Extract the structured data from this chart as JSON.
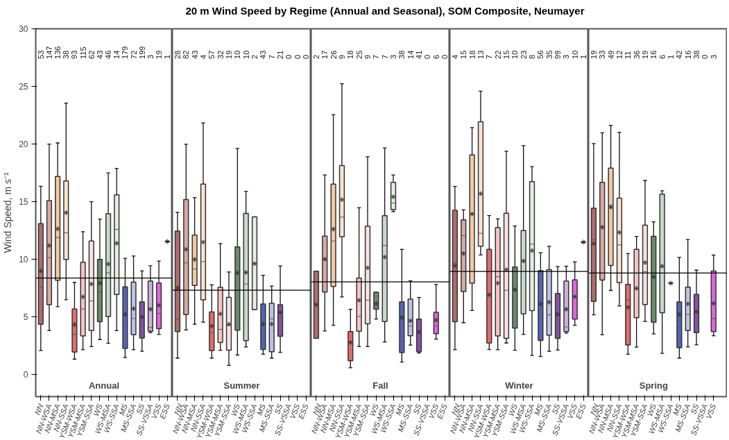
{
  "chart_data": [
    {
      "type": "box",
      "ylabel": "Wind Speed, m s⁻¹",
      "categories": [
        "NN",
        "NN-WSA",
        "NN-MSA",
        "NN-SSA",
        "YSM-WSA",
        "YSM-MSA",
        "YSM-SSA",
        "WS",
        "WS-MSA",
        "WS-SSA",
        "MS",
        "MS-SSA",
        "SS",
        "SS-VSSA",
        "VSS",
        "ESS"
      ],
      "colors": [
        "#b06c6c",
        "#d8aaa2",
        "#f2c9a4",
        "#fbe3d0",
        "#e26b6b",
        "#f6c3c3",
        "#fbe1e1",
        "#6b8b6b",
        "#c9d9c9",
        "#e2eee1",
        "#5563b5",
        "#bcc3e3",
        "#8552a5",
        "#cbb3db",
        "#e066e0",
        "#222222"
      ],
      "ylim": [
        -1.9,
        30
      ],
      "yticks": [
        0,
        5,
        10,
        15,
        20,
        25,
        30
      ],
      "boxes": [
        {
          "low": 2.1,
          "q1": 4.38,
          "median": 7.6,
          "q3": 13.1,
          "high": 16.35,
          "mean": 9.0
        },
        {
          "low": 3.83,
          "q1": 6.07,
          "median": 10.15,
          "q3": 15.1,
          "high": 20.0,
          "mean": 11.2
        },
        {
          "low": 5.9,
          "q1": 8.2,
          "median": 11.9,
          "q3": 17.2,
          "high": 20.1,
          "mean": 12.65
        },
        {
          "low": 6.5,
          "q1": 10.0,
          "median": 12.3,
          "q3": 16.8,
          "high": 23.55,
          "mean": 14.05
        },
        {
          "low": 1.35,
          "q1": 1.96,
          "median": 3.5,
          "q3": 5.7,
          "high": 8.0,
          "mean": 4.35
        },
        {
          "low": 2.17,
          "q1": 3.36,
          "median": 5.7,
          "q3": 9.75,
          "high": 12.4,
          "mean": 6.75
        },
        {
          "low": 2.44,
          "q1": 3.83,
          "median": 6.4,
          "q3": 11.6,
          "high": 15.0,
          "mean": 7.87
        },
        {
          "low": 3.05,
          "q1": 4.6,
          "median": 7.17,
          "q3": 10.0,
          "high": 13.5,
          "mean": 7.94
        },
        {
          "low": 2.73,
          "q1": 5.05,
          "median": 8.84,
          "q3": 13.96,
          "high": 17.5,
          "mean": 9.6
        },
        {
          "low": 3.83,
          "q1": 6.97,
          "median": 12.6,
          "q3": 15.6,
          "high": 17.9,
          "mean": 11.4
        },
        {
          "low": 1.49,
          "q1": 2.28,
          "median": 4.33,
          "q3": 7.62,
          "high": 10.1,
          "mean": 5.23
        },
        {
          "low": 2.17,
          "q1": 3.47,
          "median": 4.87,
          "q3": 8.03,
          "high": 10.3,
          "mean": 5.73
        },
        {
          "low": 2.03,
          "q1": 3.18,
          "median": 4.33,
          "q3": 6.32,
          "high": 9.0,
          "mean": 5.0
        },
        {
          "low": 3.65,
          "q1": 3.77,
          "median": 4.1,
          "q3": 8.12,
          "high": 9.45,
          "mean": 5.68
        },
        {
          "low": 3.5,
          "q1": 4.0,
          "median": 5.3,
          "q3": 7.96,
          "high": 9.86,
          "mean": 6.02
        },
        {
          "low": 11.55,
          "q1": 11.55,
          "median": 11.55,
          "q3": 11.55,
          "high": 11.55,
          "mean": 11.55
        }
      ],
      "ref_lines": [
        {
          "axis": "y",
          "value": 8.39
        }
      ],
      "annotations": [
        "Annual",
        "53",
        "147",
        "136",
        "38",
        "93",
        "115",
        "62",
        "43",
        "46",
        "14",
        "179",
        "72",
        "199",
        "3",
        "19",
        "1"
      ]
    },
    {
      "type": "box",
      "categories": [
        "NN",
        "NN-WSA",
        "NN-MSA",
        "NN-SSA",
        "YSM-WSA",
        "YSM-MSA",
        "YSM-SSA",
        "WS",
        "WS-MSA",
        "WS-SSA",
        "MS",
        "MS-SSA",
        "SS",
        "SS-VSSA",
        "VSS",
        "ESS"
      ],
      "colors": [
        "#b06c6c",
        "#d8aaa2",
        "#f2c9a4",
        "#fbe3d0",
        "#e26b6b",
        "#f6c3c3",
        "#fbe1e1",
        "#6b8b6b",
        "#c9d9c9",
        "#e2eee1",
        "#5563b5",
        "#bcc3e3",
        "#8552a5",
        "#cbb3db",
        "#e066e0",
        "#222222"
      ],
      "ylim": [
        -1.9,
        30
      ],
      "yticks": [
        0,
        5,
        10,
        15,
        20,
        25,
        30
      ],
      "tick_labels": "x",
      "boxes": [
        {
          "low": 1.44,
          "q1": 3.74,
          "median": 4.83,
          "q3": 12.45,
          "high": 14.08,
          "mean": 7.53
        },
        {
          "low": 3.88,
          "q1": 5.21,
          "median": 9.7,
          "q3": 15.2,
          "high": 19.99,
          "mean": 10.87
        },
        {
          "low": 4.38,
          "q1": 7.74,
          "median": 9.16,
          "q3": 12.11,
          "high": 15.36,
          "mean": 10.0
        },
        {
          "low": 4.56,
          "q1": 6.5,
          "median": 9.81,
          "q3": 16.53,
          "high": 21.84,
          "mean": 11.5
        },
        {
          "low": 1.44,
          "q1": 2.08,
          "median": 3.65,
          "q3": 5.44,
          "high": 7.8,
          "mean": 4.22
        },
        {
          "low": 2.12,
          "q1": 2.8,
          "median": 3.93,
          "q3": 7.58,
          "high": 11.37,
          "mean": 5.28
        },
        {
          "low": 0.81,
          "q1": 2.14,
          "median": 4.3,
          "q3": 6.7,
          "high": 8.91,
          "mean": 4.38
        },
        {
          "low": 1.71,
          "q1": 3.86,
          "median": 8.7,
          "q3": 11.08,
          "high": 19.63,
          "mean": 8.85
        },
        {
          "low": 2.41,
          "q1": 2.96,
          "median": 7.87,
          "q3": 13.99,
          "high": 15.9,
          "mean": 8.87
        },
        {
          "low": 5.66,
          "q1": 5.66,
          "median": 9.63,
          "q3": 13.69,
          "high": 13.69,
          "mean": 9.63
        },
        {
          "low": 1.78,
          "q1": 2.19,
          "median": 3.23,
          "q3": 6.14,
          "high": 8.62,
          "mean": 4.38
        },
        {
          "low": 1.44,
          "q1": 2.0,
          "median": 4.85,
          "q3": 6.2,
          "high": 7.69,
          "mean": 4.4
        },
        {
          "low": 1.94,
          "q1": 3.34,
          "median": 5.0,
          "q3": 6.07,
          "high": 9.43,
          "mean": 5.39
        },
        null,
        null,
        null
      ],
      "ref_lines": [
        {
          "axis": "y",
          "value": 7.33
        }
      ],
      "annotations": [
        "Summer",
        "28",
        "82",
        "43",
        "4",
        "57",
        "32",
        "19",
        "10",
        "10",
        "2",
        "43",
        "7",
        "21",
        "0",
        "0",
        "0"
      ]
    },
    {
      "type": "box",
      "categories": [
        "NN",
        "NN-WSA",
        "NN-MSA",
        "NN-SSA",
        "YSM-WSA",
        "YSM-MSA",
        "YSM-SSA",
        "WS",
        "WS-MSA",
        "WS-SSA",
        "MS",
        "MS-SSA",
        "SS",
        "SS-VSSA",
        "VSS",
        "ESS"
      ],
      "colors": [
        "#b06c6c",
        "#d8aaa2",
        "#f2c9a4",
        "#fbe3d0",
        "#e26b6b",
        "#f6c3c3",
        "#fbe1e1",
        "#6b8b6b",
        "#c9d9c9",
        "#e2eee1",
        "#5563b5",
        "#bcc3e3",
        "#8552a5",
        "#cbb3db",
        "#e066e0",
        "#222222"
      ],
      "ylim": [
        -1.9,
        30
      ],
      "yticks": [
        0,
        5,
        10,
        15,
        20,
        25,
        30
      ],
      "tick_labels": "x",
      "boxes": [
        {
          "low": 3.16,
          "q1": 3.16,
          "median": 6.07,
          "q3": 8.98,
          "high": 8.98,
          "mean": 6.07
        },
        {
          "low": 3.79,
          "q1": 7.17,
          "median": 10.0,
          "q3": 12.02,
          "high": 17.32,
          "mean": 10.02
        },
        {
          "low": 4.29,
          "q1": 7.65,
          "median": 11.6,
          "q3": 16.53,
          "high": 22.54,
          "mean": 12.63
        },
        {
          "low": 6.74,
          "q1": 11.98,
          "median": 13.67,
          "q3": 18.14,
          "high": 25.24,
          "mean": 15.18
        },
        {
          "low": 0.61,
          "q1": 1.22,
          "median": 2.8,
          "q3": 3.74,
          "high": 5.68,
          "mean": 2.8
        },
        {
          "low": 2.44,
          "q1": 3.77,
          "median": 5.05,
          "q3": 8.37,
          "high": 14.48,
          "mean": 6.45
        },
        {
          "low": 2.44,
          "q1": 4.42,
          "median": 6.47,
          "q3": 12.88,
          "high": 18.9,
          "mean": 9.27
        },
        {
          "low": 4.83,
          "q1": 5.68,
          "median": 6.02,
          "q3": 7.15,
          "high": 7.15,
          "mean": 6.18
        },
        {
          "low": 2.84,
          "q1": 4.62,
          "median": 11.21,
          "q3": 13.8,
          "high": 19.67,
          "mean": 10.2
        },
        {
          "low": 14.14,
          "q1": 14.32,
          "median": 14.89,
          "q3": 16.69,
          "high": 17.32,
          "mean": 15.43
        },
        {
          "low": 1.1,
          "q1": 1.92,
          "median": 3.32,
          "q3": 6.32,
          "high": 10.87,
          "mean": 4.96
        },
        {
          "low": 2.57,
          "q1": 3.38,
          "median": 4.22,
          "q3": 6.56,
          "high": 8.14,
          "mean": 4.67
        },
        {
          "low": 1.89,
          "q1": 2.0,
          "median": 3.6,
          "q3": 4.83,
          "high": 6.7,
          "mean": 3.72
        },
        null,
        {
          "low": 3.09,
          "q1": 3.56,
          "median": 4.22,
          "q3": 5.41,
          "high": 7.83,
          "mean": 4.74
        },
        null
      ],
      "ref_lines": [
        {
          "axis": "y",
          "value": 8.05
        }
      ],
      "title": "20 m Wind Speed by Regime (Annual and Seasonal), SOM Composite, Neumayer",
      "annotations": [
        "Fall",
        "2",
        "17",
        "26",
        "9",
        "18",
        "25",
        "9",
        "7",
        "7",
        "3",
        "38",
        "14",
        "41",
        "0",
        "6",
        "0"
      ]
    },
    {
      "type": "box",
      "categories": [
        "NN",
        "NN-WSA",
        "NN-MSA",
        "NN-SSA",
        "YSM-WSA",
        "YSM-MSA",
        "YSM-SSA",
        "WS",
        "WS-MSA",
        "WS-SSA",
        "MS",
        "MS-SSA",
        "SS",
        "SS-VSSA",
        "VSS",
        "ESS"
      ],
      "colors": [
        "#b06c6c",
        "#d8aaa2",
        "#f2c9a4",
        "#fbe3d0",
        "#e26b6b",
        "#f6c3c3",
        "#fbe1e1",
        "#6b8b6b",
        "#c9d9c9",
        "#e2eee1",
        "#5563b5",
        "#bcc3e3",
        "#8552a5",
        "#cbb3db",
        "#e066e0",
        "#222222"
      ],
      "ylim": [
        -1.9,
        30
      ],
      "yticks": [
        0,
        5,
        10,
        15,
        20,
        25,
        30
      ],
      "tick_labels": "x",
      "boxes": [
        {
          "low": 2.17,
          "q1": 4.6,
          "median": 9.7,
          "q3": 14.26,
          "high": 16.33,
          "mean": 9.45
        },
        {
          "low": 4.51,
          "q1": 7.22,
          "median": 12.07,
          "q3": 13.44,
          "high": 14.3,
          "mean": 10.51
        },
        {
          "low": 5.57,
          "q1": 7.94,
          "median": 13.94,
          "q3": 19.06,
          "high": 21.43,
          "mean": 13.94
        },
        {
          "low": 10.38,
          "q1": 11.14,
          "median": 12.27,
          "q3": 21.93,
          "high": 24.59,
          "mean": 15.7
        },
        {
          "low": 2.19,
          "q1": 2.75,
          "median": 6.93,
          "q3": 10.87,
          "high": 13.8,
          "mean": 6.93
        },
        {
          "low": 2.17,
          "q1": 3.36,
          "median": 8.5,
          "q3": 12.75,
          "high": 13.51,
          "mean": 7.94
        },
        {
          "low": 2.75,
          "q1": 3.16,
          "median": 7.33,
          "q3": 14.0,
          "high": 19.38,
          "mean": 9.11
        },
        {
          "low": 2.12,
          "q1": 4.04,
          "median": 7.38,
          "q3": 9.34,
          "high": 12.9,
          "mean": 7.38
        },
        {
          "low": 3.5,
          "q1": 5.28,
          "median": 9.86,
          "q3": 12.5,
          "high": 19.87,
          "mean": 9.86
        },
        {
          "low": 1.67,
          "q1": 5.57,
          "median": 11.32,
          "q3": 16.74,
          "high": 18.05,
          "mean": 10.76
        },
        {
          "low": 1.58,
          "q1": 2.98,
          "median": 6.14,
          "q3": 9.02,
          "high": 10.58,
          "mean": 6.14
        },
        {
          "low": 2.03,
          "q1": 3.43,
          "median": 5.19,
          "q3": 9.11,
          "high": 11.14,
          "mean": 6.29
        },
        {
          "low": 2.14,
          "q1": 3.16,
          "median": 4.42,
          "q3": 7.04,
          "high": 9.38,
          "mean": 5.23
        },
        {
          "low": 3.61,
          "q1": 3.74,
          "median": 4.15,
          "q3": 8.12,
          "high": 9.41,
          "mean": 5.68
        },
        {
          "low": 4.29,
          "q1": 4.83,
          "median": 6.77,
          "q3": 8.23,
          "high": 9.79,
          "mean": 6.77
        },
        {
          "low": 11.5,
          "q1": 11.5,
          "median": 11.5,
          "q3": 11.5,
          "high": 11.5,
          "mean": 11.5
        }
      ],
      "ref_lines": [
        {
          "axis": "y",
          "value": 8.96
        }
      ],
      "annotations": [
        "Winter",
        "4",
        "15",
        "18",
        "13",
        "7",
        "22",
        "15",
        "10",
        "23",
        "8",
        "56",
        "35",
        "99",
        "3",
        "10",
        "1"
      ]
    },
    {
      "type": "box",
      "categories": [
        "NN",
        "NN-WSA",
        "NN-MSA",
        "NN-SSA",
        "YSM-WSA",
        "YSM-MSA",
        "YSM-SSA",
        "WS",
        "WS-MSA",
        "WS-SSA",
        "MS",
        "MS-SSA",
        "SS",
        "SS-VSSA",
        "VSS"
      ],
      "colors": [
        "#b06c6c",
        "#d8aaa2",
        "#f2c9a4",
        "#fbe3d0",
        "#e26b6b",
        "#f6c3c3",
        "#fbe1e1",
        "#6b8b6b",
        "#c9d9c9",
        "#333333",
        "#5563b5",
        "#bcc3e3",
        "#8552a5",
        "#cbb3db",
        "#e066e0"
      ],
      "ylim": [
        -1.9,
        30
      ],
      "yticks": [
        0,
        5,
        10,
        15,
        20,
        25,
        30
      ],
      "tick_labels": "x",
      "boxes": [
        {
          "low": 5.19,
          "q1": 6.36,
          "median": 11.7,
          "q3": 14.44,
          "high": 20.05,
          "mean": 11.37
        },
        {
          "low": 3.47,
          "q1": 8.21,
          "median": 12.79,
          "q3": 16.69,
          "high": 20.98,
          "mean": 12.79
        },
        {
          "low": 7.31,
          "q1": 9.47,
          "median": 14.71,
          "q3": 17.91,
          "high": 21.63,
          "mean": 14.53
        },
        {
          "low": 5.96,
          "q1": 7.99,
          "median": 11.26,
          "q3": 15.32,
          "high": 21.02,
          "mean": 12.34
        },
        {
          "low": 1.78,
          "q1": 2.59,
          "median": 6.47,
          "q3": 7.83,
          "high": 10.51,
          "mean": 5.84
        },
        {
          "low": 2.39,
          "q1": 4.94,
          "median": 7.49,
          "q3": 10.87,
          "high": 12.0,
          "mean": 7.49
        },
        {
          "low": 4.62,
          "q1": 6.09,
          "median": 8.93,
          "q3": 12.97,
          "high": 16.85,
          "mean": 9.72
        },
        {
          "low": 3.54,
          "q1": 4.56,
          "median": 8.48,
          "q3": 12.0,
          "high": 13.26,
          "mean": 8.48
        },
        {
          "low": 1.85,
          "q1": 5.39,
          "median": 9.41,
          "q3": 15.66,
          "high": 15.95,
          "mean": 9.41
        },
        {
          "low": 7.94,
          "q1": 7.94,
          "median": 7.94,
          "q3": 7.94,
          "high": 7.94,
          "mean": 7.94
        },
        {
          "low": 1.44,
          "q1": 2.35,
          "median": 4.67,
          "q3": 6.32,
          "high": 10.17,
          "mean": 5.23
        },
        {
          "low": 2.41,
          "q1": 3.83,
          "median": 5.23,
          "q3": 7.6,
          "high": 11.73,
          "mean": 6.14
        },
        {
          "low": 2.59,
          "q1": 3.65,
          "median": 5.46,
          "q3": 6.97,
          "high": 9.07,
          "mean": 5.46
        },
        null,
        {
          "low": 3.38,
          "q1": 3.74,
          "median": 4.87,
          "q3": 9.0,
          "high": 10.38,
          "mean": 6.18
        }
      ],
      "ref_lines": [
        {
          "axis": "y",
          "value": 8.82
        }
      ],
      "annotations": [
        "Spring",
        "19",
        "33",
        "49",
        "12",
        "11",
        "36",
        "19",
        "16",
        "6",
        "1",
        "42",
        "16",
        "38",
        "0",
        "3"
      ]
    }
  ]
}
